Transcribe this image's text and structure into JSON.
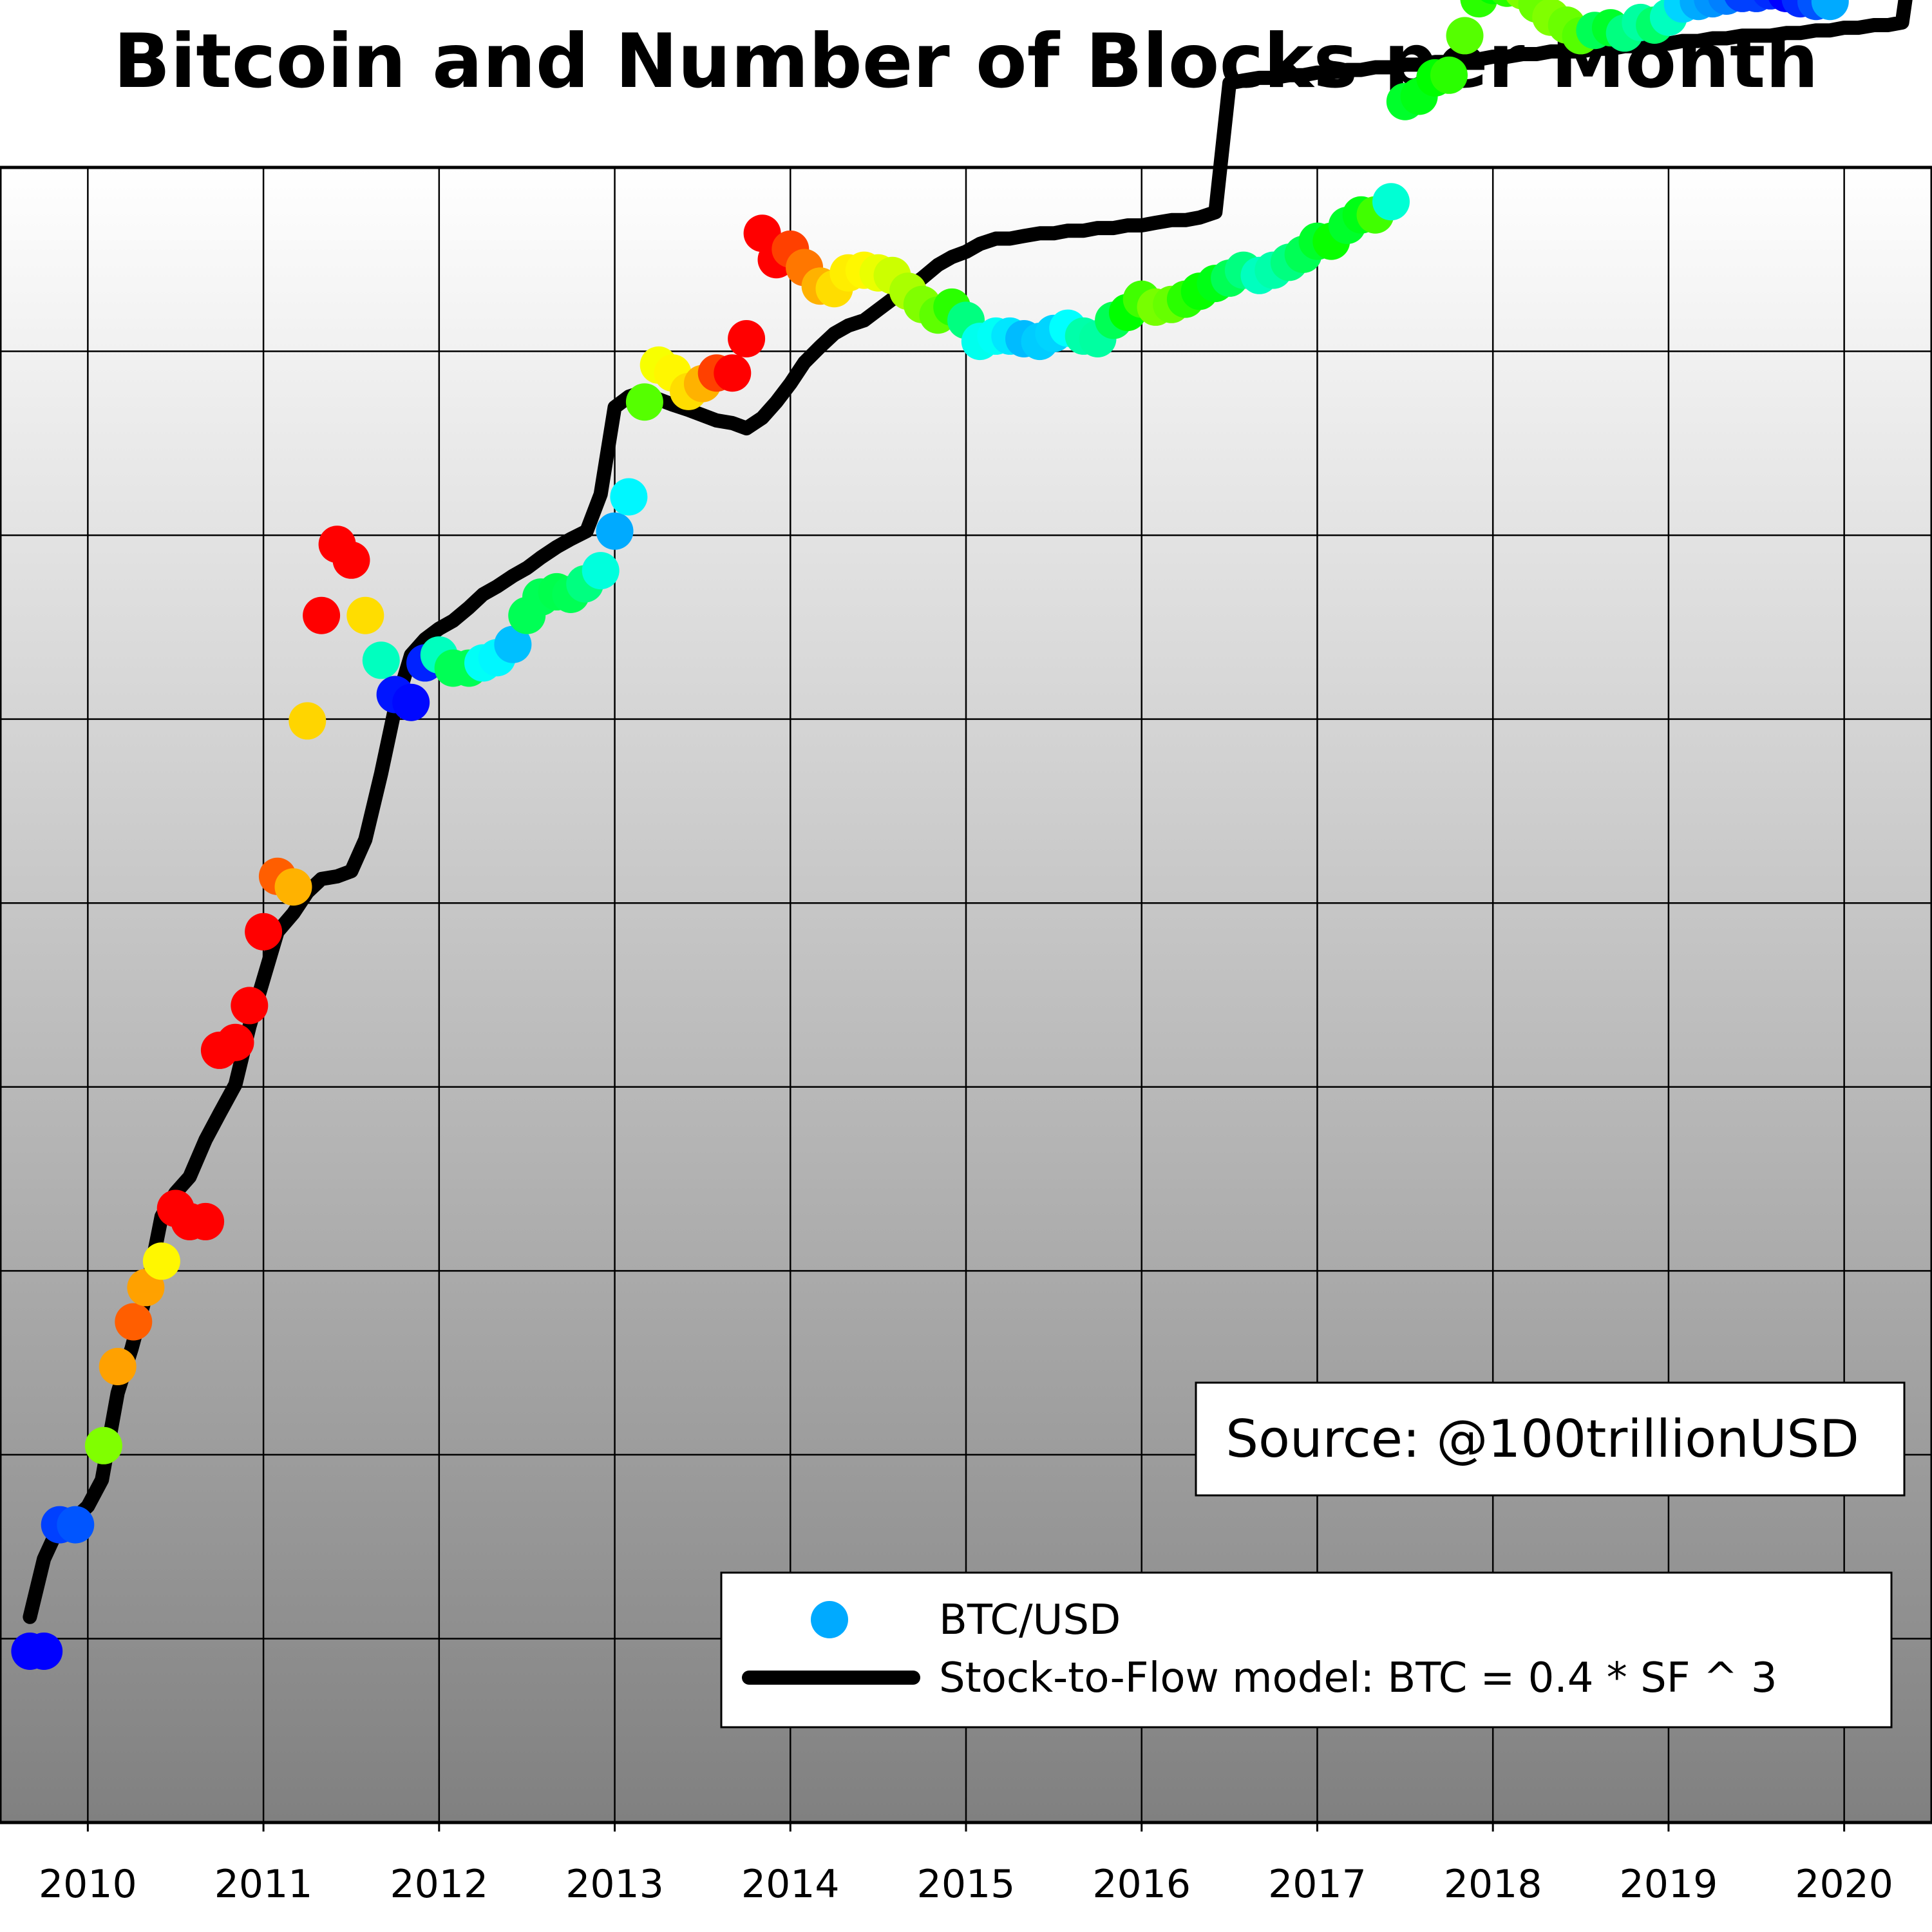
{
  "chart_data": {
    "type": "scatter",
    "title": "Bitcoin and Number of Blocks per Month",
    "xlabel": "",
    "ylabel": "",
    "x_tick_labels": [
      "2010",
      "2011",
      "2012",
      "2013",
      "2014",
      "2015",
      "2016",
      "2017",
      "2018",
      "2019",
      "2020"
    ],
    "xlim": [
      2009.5,
      2020.5
    ],
    "ylim": [
      -0.98,
      5.3
    ],
    "y_scale": "log10",
    "grid": true,
    "background": "vertical gradient white to gray",
    "source_note": "Source: @100trillionUSD",
    "legend": {
      "placement": "lower-right",
      "entries": [
        {
          "label": "BTC/USD",
          "marker": "dot",
          "color": "#00aaff"
        },
        {
          "label": "Stock-to-Flow model: BTC = 0.4 * SF ^ 3",
          "marker": "line",
          "color": "#000000"
        }
      ]
    },
    "series": [
      {
        "name": "BTC/USD",
        "kind": "scatter",
        "note": "x = year, y = log10 of the price (USD); hue = colour of the dot",
        "points": [
          [
            2009.67,
            -0.33,
            240
          ],
          [
            2009.75,
            -0.33,
            240
          ],
          [
            2009.84,
            0.15,
            225
          ],
          [
            2009.93,
            0.15,
            220
          ],
          [
            2010.09,
            0.45,
            90
          ],
          [
            2010.17,
            0.75,
            38
          ],
          [
            2010.26,
            0.92,
            22
          ],
          [
            2010.33,
            1.05,
            38
          ],
          [
            2010.42,
            1.15,
            58
          ],
          [
            2010.5,
            1.35,
            0
          ],
          [
            2010.58,
            1.3,
            0
          ],
          [
            2010.67,
            1.3,
            0
          ],
          [
            2010.75,
            1.95,
            0
          ],
          [
            2010.84,
            1.98,
            0
          ],
          [
            2010.92,
            2.12,
            0
          ],
          [
            2011.0,
            2.4,
            0
          ],
          [
            2011.08,
            2.61,
            22
          ],
          [
            2011.17,
            2.57,
            42
          ],
          [
            2011.25,
            3.2,
            50
          ],
          [
            2011.33,
            3.6,
            0
          ],
          [
            2011.42,
            3.87,
            0
          ],
          [
            2011.5,
            3.81,
            0
          ],
          [
            2011.58,
            3.6,
            52
          ],
          [
            2011.67,
            3.43,
            165
          ],
          [
            2011.75,
            3.3,
            235
          ],
          [
            2011.84,
            3.27,
            238
          ],
          [
            2011.92,
            3.42,
            232
          ],
          [
            2012.0,
            3.45,
            165
          ],
          [
            2012.08,
            3.4,
            140
          ],
          [
            2012.17,
            3.4,
            140
          ],
          [
            2012.25,
            3.42,
            178
          ],
          [
            2012.33,
            3.44,
            182
          ],
          [
            2012.42,
            3.49,
            195
          ],
          [
            2012.5,
            3.6,
            140
          ],
          [
            2012.58,
            3.67,
            140
          ],
          [
            2012.67,
            3.69,
            138
          ],
          [
            2012.75,
            3.68,
            140
          ],
          [
            2012.83,
            3.72,
            150
          ],
          [
            2012.92,
            3.77,
            172
          ],
          [
            2013.0,
            3.92,
            200
          ],
          [
            2013.08,
            4.05,
            182
          ],
          [
            2013.17,
            4.41,
            100
          ],
          [
            2013.25,
            4.55,
            62
          ],
          [
            2013.33,
            4.52,
            58
          ],
          [
            2013.42,
            4.45,
            52
          ],
          [
            2013.5,
            4.48,
            42
          ],
          [
            2013.58,
            4.52,
            15
          ],
          [
            2013.67,
            4.52,
            0
          ],
          [
            2013.75,
            4.65,
            0
          ],
          [
            2013.84,
            5.05,
            0
          ],
          [
            2013.92,
            4.95,
            0
          ],
          [
            2014.0,
            4.99,
            15
          ],
          [
            2014.08,
            4.92,
            28
          ],
          [
            2014.17,
            4.85,
            42
          ],
          [
            2014.25,
            4.84,
            52
          ],
          [
            2014.33,
            4.9,
            56
          ],
          [
            2014.42,
            4.91,
            58
          ],
          [
            2014.5,
            4.9,
            65
          ],
          [
            2014.58,
            4.89,
            72
          ],
          [
            2014.67,
            4.83,
            80
          ],
          [
            2014.75,
            4.78,
            90
          ],
          [
            2014.84,
            4.74,
            98
          ],
          [
            2014.92,
            4.77,
            110
          ],
          [
            2015.0,
            4.72,
            150
          ],
          [
            2015.08,
            4.64,
            176
          ],
          [
            2015.17,
            4.66,
            178
          ],
          [
            2015.25,
            4.66,
            186
          ],
          [
            2015.33,
            4.65,
            196
          ],
          [
            2015.42,
            4.64,
            192
          ],
          [
            2015.5,
            4.67,
            190
          ],
          [
            2015.58,
            4.69,
            180
          ],
          [
            2015.67,
            4.66,
            160
          ],
          [
            2015.75,
            4.65,
            158
          ],
          [
            2015.84,
            4.72,
            140
          ],
          [
            2015.92,
            4.75,
            120
          ],
          [
            2016.0,
            4.8,
            105
          ],
          [
            2016.08,
            4.77,
            92
          ],
          [
            2016.17,
            4.78,
            96
          ],
          [
            2016.25,
            4.8,
            110
          ],
          [
            2016.33,
            4.83,
            118
          ],
          [
            2016.42,
            4.86,
            125
          ],
          [
            2016.5,
            4.88,
            140
          ],
          [
            2016.58,
            4.91,
            150
          ],
          [
            2016.67,
            4.89,
            165
          ],
          [
            2016.75,
            4.91,
            160
          ],
          [
            2016.84,
            4.94,
            150
          ],
          [
            2016.92,
            4.97,
            140
          ],
          [
            2017.0,
            5.02,
            130
          ],
          [
            2017.08,
            5.02,
            118
          ],
          [
            2017.17,
            5.08,
            130
          ],
          [
            2017.25,
            5.12,
            125
          ],
          [
            2017.33,
            5.12,
            105
          ],
          [
            2017.42,
            5.17,
            170
          ],
          [
            2017.5,
            5.55,
            130
          ],
          [
            2017.58,
            5.57,
            125
          ],
          [
            2017.67,
            5.64,
            120
          ],
          [
            2017.75,
            5.65,
            110
          ],
          [
            2017.84,
            5.8,
            100
          ],
          [
            2017.92,
            5.94,
            110
          ],
          [
            2018.0,
            5.99,
            120
          ],
          [
            2018.08,
            5.98,
            110
          ],
          [
            2018.17,
            5.97,
            90
          ],
          [
            2018.25,
            5.92,
            95
          ],
          [
            2018.33,
            5.87,
            90
          ],
          [
            2018.42,
            5.84,
            95
          ],
          [
            2018.5,
            5.8,
            100
          ],
          [
            2018.58,
            5.82,
            140
          ],
          [
            2018.67,
            5.83,
            130
          ],
          [
            2018.75,
            5.81,
            150
          ],
          [
            2018.84,
            5.85,
            158
          ],
          [
            2018.92,
            5.84,
            145
          ],
          [
            2019.0,
            5.87,
            165
          ],
          [
            2019.08,
            5.92,
            190
          ],
          [
            2019.17,
            5.93,
            200
          ],
          [
            2019.25,
            5.94,
            205
          ],
          [
            2019.33,
            5.95,
            210
          ],
          [
            2019.42,
            5.96,
            225
          ],
          [
            2019.5,
            5.96,
            225
          ],
          [
            2019.58,
            5.97,
            230
          ],
          [
            2019.67,
            5.96,
            240
          ],
          [
            2019.75,
            5.94,
            230
          ],
          [
            2019.84,
            5.93,
            220
          ],
          [
            2019.92,
            5.93,
            200
          ]
        ]
      },
      {
        "name": "Stock-to-Flow model: BTC = 0.4 * SF ^ 3",
        "kind": "line",
        "note": "x = year, y = log10 of the model price (USD)",
        "points": [
          [
            2009.67,
            -0.2
          ],
          [
            2009.75,
            0.02
          ],
          [
            2009.84,
            0.15
          ],
          [
            2009.92,
            0.17
          ],
          [
            2010.0,
            0.22
          ],
          [
            2010.08,
            0.32
          ],
          [
            2010.17,
            0.65
          ],
          [
            2010.25,
            0.82
          ],
          [
            2010.33,
            1.02
          ],
          [
            2010.42,
            1.32
          ],
          [
            2010.5,
            1.41
          ],
          [
            2010.58,
            1.47
          ],
          [
            2010.67,
            1.61
          ],
          [
            2010.75,
            1.71
          ],
          [
            2010.84,
            1.82
          ],
          [
            2010.92,
            2.04
          ],
          [
            2011.0,
            2.22
          ],
          [
            2011.08,
            2.4
          ],
          [
            2011.17,
            2.47
          ],
          [
            2011.25,
            2.55
          ],
          [
            2011.33,
            2.6
          ],
          [
            2011.42,
            2.61
          ],
          [
            2011.5,
            2.63
          ],
          [
            2011.58,
            2.75
          ],
          [
            2011.67,
            3.0
          ],
          [
            2011.75,
            3.25
          ],
          [
            2011.84,
            3.45
          ],
          [
            2011.92,
            3.51
          ],
          [
            2012.0,
            3.55
          ],
          [
            2012.08,
            3.58
          ],
          [
            2012.17,
            3.63
          ],
          [
            2012.25,
            3.68
          ],
          [
            2012.33,
            3.71
          ],
          [
            2012.42,
            3.75
          ],
          [
            2012.5,
            3.78
          ],
          [
            2012.58,
            3.82
          ],
          [
            2012.67,
            3.86
          ],
          [
            2012.75,
            3.89
          ],
          [
            2012.84,
            3.92
          ],
          [
            2012.92,
            4.06
          ],
          [
            2013.0,
            4.39
          ],
          [
            2013.08,
            4.43
          ],
          [
            2013.17,
            4.45
          ],
          [
            2013.25,
            4.42
          ],
          [
            2013.33,
            4.4
          ],
          [
            2013.42,
            4.38
          ],
          [
            2013.5,
            4.36
          ],
          [
            2013.58,
            4.34
          ],
          [
            2013.67,
            4.33
          ],
          [
            2013.75,
            4.31
          ],
          [
            2013.84,
            4.35
          ],
          [
            2013.92,
            4.41
          ],
          [
            2014.0,
            4.48
          ],
          [
            2014.08,
            4.56
          ],
          [
            2014.17,
            4.62
          ],
          [
            2014.25,
            4.67
          ],
          [
            2014.33,
            4.7
          ],
          [
            2014.42,
            4.72
          ],
          [
            2014.5,
            4.76
          ],
          [
            2014.58,
            4.8
          ],
          [
            2014.67,
            4.84
          ],
          [
            2014.75,
            4.88
          ],
          [
            2014.84,
            4.93
          ],
          [
            2014.92,
            4.96
          ],
          [
            2015.0,
            4.98
          ],
          [
            2015.08,
            5.01
          ],
          [
            2015.17,
            5.03
          ],
          [
            2015.25,
            5.03
          ],
          [
            2015.33,
            5.04
          ],
          [
            2015.42,
            5.05
          ],
          [
            2015.5,
            5.05
          ],
          [
            2015.58,
            5.06
          ],
          [
            2015.67,
            5.06
          ],
          [
            2015.75,
            5.07
          ],
          [
            2015.84,
            5.07
          ],
          [
            2015.92,
            5.08
          ],
          [
            2016.0,
            5.08
          ],
          [
            2016.08,
            5.09
          ],
          [
            2016.17,
            5.1
          ],
          [
            2016.25,
            5.1
          ],
          [
            2016.33,
            5.11
          ],
          [
            2016.42,
            5.13
          ],
          [
            2016.5,
            5.62
          ],
          [
            2016.58,
            5.63
          ],
          [
            2016.67,
            5.64
          ],
          [
            2016.75,
            5.64
          ],
          [
            2016.84,
            5.65
          ],
          [
            2016.92,
            5.65
          ],
          [
            2017.0,
            5.66
          ],
          [
            2017.08,
            5.66
          ],
          [
            2017.17,
            5.67
          ],
          [
            2017.25,
            5.67
          ],
          [
            2017.33,
            5.68
          ],
          [
            2017.42,
            5.68
          ],
          [
            2017.5,
            5.69
          ],
          [
            2017.58,
            5.69
          ],
          [
            2017.67,
            5.7
          ],
          [
            2017.75,
            5.7
          ],
          [
            2017.84,
            5.71
          ],
          [
            2017.92,
            5.71
          ],
          [
            2018.0,
            5.72
          ],
          [
            2018.08,
            5.72
          ],
          [
            2018.17,
            5.73
          ],
          [
            2018.25,
            5.73
          ],
          [
            2018.33,
            5.74
          ],
          [
            2018.42,
            5.74
          ],
          [
            2018.5,
            5.74
          ],
          [
            2018.58,
            5.75
          ],
          [
            2018.67,
            5.75
          ],
          [
            2018.75,
            5.76
          ],
          [
            2018.84,
            5.76
          ],
          [
            2018.92,
            5.77
          ],
          [
            2019.0,
            5.77
          ],
          [
            2019.08,
            5.78
          ],
          [
            2019.17,
            5.78
          ],
          [
            2019.25,
            5.79
          ],
          [
            2019.33,
            5.79
          ],
          [
            2019.42,
            5.8
          ],
          [
            2019.5,
            5.8
          ],
          [
            2019.58,
            5.8
          ],
          [
            2019.67,
            5.81
          ],
          [
            2019.75,
            5.81
          ],
          [
            2019.84,
            5.82
          ],
          [
            2019.92,
            5.82
          ],
          [
            2020.0,
            5.83
          ],
          [
            2020.08,
            5.83
          ],
          [
            2020.17,
            5.84
          ],
          [
            2020.25,
            5.84
          ],
          [
            2020.33,
            5.85
          ],
          [
            2020.42,
            6.27
          ],
          [
            2020.5,
            6.28
          ]
        ]
      }
    ]
  }
}
